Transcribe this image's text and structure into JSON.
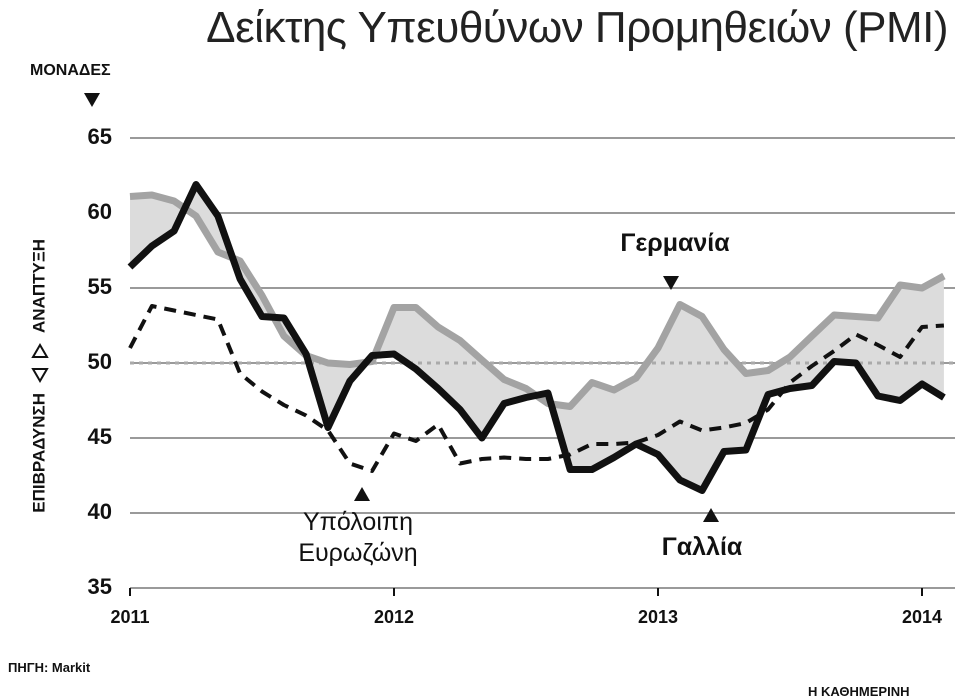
{
  "chart_data": {
    "type": "line",
    "title": "Δείκτης Υπευθύνων Προμηθειών (PMI)",
    "y_label": "ΜΟΝΑΔΕΣ",
    "upper_zone_label": "ΑΝΑΠΤΥΞΗ",
    "lower_zone_label": "ΕΠΙΒΡΑΔΥΝΣΗ",
    "source": "ΠΗΓΗ: Markit",
    "credit": "Η ΚΑΘΗΜΕΡΙΝΗ",
    "x": [
      2011,
      2011.083,
      2011.167,
      2011.25,
      2011.333,
      2011.417,
      2011.5,
      2011.583,
      2011.667,
      2011.75,
      2011.833,
      2011.917,
      2012,
      2012.083,
      2012.167,
      2012.25,
      2012.333,
      2012.417,
      2012.5,
      2012.583,
      2012.667,
      2012.75,
      2012.833,
      2012.917,
      2013,
      2013.083,
      2013.167,
      2013.25,
      2013.333,
      2013.417,
      2013.5,
      2013.583,
      2013.667,
      2013.75,
      2013.833,
      2013.917,
      2014,
      2014.083
    ],
    "series": [
      {
        "name": "Γερμανία",
        "color": "#a3a3a3",
        "dash": false,
        "values": [
          61.1,
          61.2,
          60.8,
          59.8,
          57.4,
          56.8,
          54.5,
          51.8,
          50.5,
          50.0,
          49.9,
          50.1,
          53.7,
          53.7,
          52.4,
          51.5,
          50.2,
          48.9,
          48.3,
          47.3,
          47.1,
          48.7,
          48.2,
          49.0,
          51.0,
          53.9,
          53.1,
          50.9,
          49.3,
          49.5,
          50.4,
          51.8,
          53.2,
          53.1,
          53.0,
          55.2,
          55.0,
          55.8
        ]
      },
      {
        "name": "Γαλλία",
        "color": "#111111",
        "dash": false,
        "values": [
          56.4,
          57.8,
          58.8,
          61.9,
          59.8,
          55.6,
          53.1,
          53.0,
          50.6,
          45.7,
          48.8,
          50.5,
          50.6,
          49.6,
          48.3,
          46.9,
          45.0,
          47.3,
          47.7,
          48.0,
          42.9,
          42.9,
          43.7,
          44.6,
          43.9,
          42.2,
          41.5,
          44.1,
          44.2,
          47.9,
          48.3,
          48.5,
          50.1,
          50.0,
          47.8,
          47.5,
          48.6,
          47.7
        ]
      },
      {
        "name": "Υπόλοιπη Ευρωζώνη",
        "color": "#111111",
        "dash": true,
        "values": [
          51.0,
          53.8,
          53.5,
          53.2,
          52.9,
          49.3,
          48.1,
          47.2,
          46.5,
          45.5,
          43.3,
          42.8,
          45.3,
          44.8,
          45.9,
          43.3,
          43.6,
          43.7,
          43.6,
          43.6,
          43.9,
          44.6,
          44.6,
          44.7,
          45.2,
          46.1,
          45.5,
          45.7,
          46.0,
          46.9,
          48.7,
          49.8,
          50.8,
          51.9,
          51.2,
          50.4,
          52.4,
          52.5
        ]
      }
    ],
    "shade_color": "#dcdcdc",
    "reference_line": 50,
    "xlim": [
      2011,
      2014.125
    ],
    "xticks": [
      2011,
      2012,
      2013,
      2014
    ],
    "ylim": [
      35,
      65
    ],
    "yticks": [
      35,
      40,
      45,
      50,
      55,
      60,
      65
    ],
    "grid": true
  }
}
